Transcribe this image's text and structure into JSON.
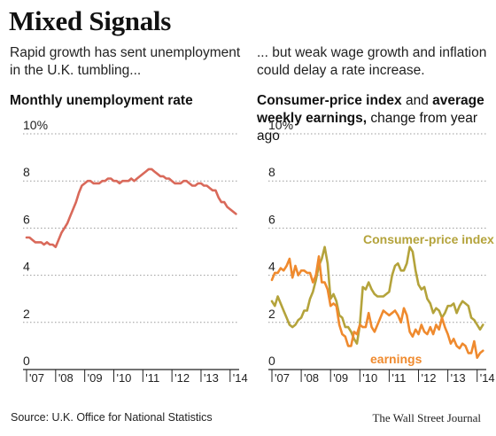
{
  "header": {
    "title": "Mixed Signals",
    "left_intro": "Rapid growth has sent unemployment in the U.K. tumbling...",
    "right_intro": "... but weak wage growth and inflation could delay a rate increase."
  },
  "footer": {
    "source": "Source: U.K. Office for National Statistics",
    "credit": "The Wall Street Journal"
  },
  "chart_data": [
    {
      "type": "line",
      "title": "Monthly unemployment rate",
      "ylim": [
        0,
        10
      ],
      "yticks": [
        "10%",
        "8",
        "6",
        "4",
        "2",
        "0"
      ],
      "xticks": [
        "'07",
        "'08",
        "'09",
        "'10",
        "'11",
        "'12",
        "'13",
        "'14"
      ],
      "colors": {
        "unemployment": "#d9695a"
      },
      "series": [
        {
          "x": [
            2007.0,
            2007.1,
            2007.2,
            2007.3,
            2007.4,
            2007.5,
            2007.6,
            2007.7,
            2007.8,
            2007.9,
            2008.0,
            2008.1,
            2008.2,
            2008.3,
            2008.4,
            2008.5,
            2008.6,
            2008.7,
            2008.8,
            2008.9,
            2009.0,
            2009.1,
            2009.2,
            2009.3,
            2009.4,
            2009.5,
            2009.6,
            2009.7,
            2009.8,
            2009.9,
            2010.0,
            2010.1,
            2010.2,
            2010.3,
            2010.4,
            2010.5,
            2010.6,
            2010.7,
            2010.8,
            2010.9,
            2011.0,
            2011.1,
            2011.2,
            2011.3,
            2011.4,
            2011.5,
            2011.6,
            2011.7,
            2011.8,
            2011.9,
            2012.0,
            2012.1,
            2012.2,
            2012.3,
            2012.4,
            2012.5,
            2012.6,
            2012.7,
            2012.8,
            2012.9,
            2013.0,
            2013.1,
            2013.2,
            2013.3,
            2013.4,
            2013.5,
            2013.6,
            2013.7,
            2013.8,
            2013.9,
            2014.0,
            2014.1,
            2014.2
          ],
          "values": [
            5.6,
            5.6,
            5.5,
            5.4,
            5.4,
            5.4,
            5.3,
            5.4,
            5.3,
            5.3,
            5.2,
            5.5,
            5.8,
            6.0,
            6.2,
            6.5,
            6.8,
            7.1,
            7.5,
            7.8,
            7.9,
            8.0,
            8.0,
            7.9,
            7.9,
            7.9,
            8.0,
            8.0,
            8.1,
            8.1,
            8.0,
            8.0,
            7.9,
            8.0,
            8.0,
            8.0,
            8.1,
            8.0,
            8.1,
            8.2,
            8.3,
            8.4,
            8.5,
            8.5,
            8.4,
            8.3,
            8.2,
            8.2,
            8.1,
            8.1,
            8.0,
            7.9,
            7.9,
            7.9,
            8.0,
            8.0,
            7.9,
            7.8,
            7.8,
            7.9,
            7.9,
            7.8,
            7.8,
            7.7,
            7.6,
            7.6,
            7.3,
            7.1,
            7.1,
            6.9,
            6.8,
            6.7,
            6.6
          ]
        }
      ]
    },
    {
      "type": "line",
      "title_bold_1": "Consumer-price index",
      "title_plain_1": " and ",
      "title_bold_2": "average weekly earnings,",
      "title_plain_2": " change from year ago",
      "ylim": [
        0,
        10
      ],
      "yticks": [
        "10%",
        "8",
        "6",
        "4",
        "2",
        "0"
      ],
      "xticks": [
        "'07",
        "'08",
        "'09",
        "'10",
        "'11",
        "'12",
        "'13",
        "'14"
      ],
      "series": [
        {
          "name": "Consumer-price index",
          "color": "#b4a33b",
          "x": [
            2007.0,
            2007.1,
            2007.2,
            2007.3,
            2007.4,
            2007.5,
            2007.6,
            2007.7,
            2007.8,
            2007.9,
            2008.0,
            2008.1,
            2008.2,
            2008.3,
            2008.4,
            2008.5,
            2008.6,
            2008.7,
            2008.8,
            2008.9,
            2009.0,
            2009.1,
            2009.2,
            2009.3,
            2009.4,
            2009.5,
            2009.6,
            2009.7,
            2009.8,
            2009.9,
            2010.0,
            2010.1,
            2010.2,
            2010.3,
            2010.4,
            2010.5,
            2010.6,
            2010.7,
            2010.8,
            2010.9,
            2011.0,
            2011.1,
            2011.2,
            2011.3,
            2011.4,
            2011.5,
            2011.6,
            2011.7,
            2011.8,
            2011.9,
            2012.0,
            2012.1,
            2012.2,
            2012.3,
            2012.4,
            2012.5,
            2012.6,
            2012.7,
            2012.8,
            2012.9,
            2013.0,
            2013.1,
            2013.2,
            2013.3,
            2013.4,
            2013.5,
            2013.6,
            2013.7,
            2013.8,
            2013.9,
            2014.0,
            2014.1,
            2014.2
          ],
          "values": [
            2.9,
            2.7,
            3.1,
            2.8,
            2.5,
            2.2,
            1.9,
            1.8,
            1.9,
            2.1,
            2.2,
            2.5,
            2.5,
            3.0,
            3.3,
            3.8,
            4.4,
            4.7,
            5.2,
            4.5,
            3.0,
            3.2,
            2.9,
            2.3,
            2.2,
            1.8,
            1.8,
            1.6,
            1.3,
            1.1,
            1.9,
            3.5,
            3.4,
            3.7,
            3.4,
            3.2,
            3.1,
            3.1,
            3.1,
            3.2,
            3.3,
            4.0,
            4.4,
            4.5,
            4.2,
            4.2,
            4.5,
            5.2,
            5.0,
            4.2,
            3.6,
            3.4,
            3.5,
            3.0,
            2.8,
            2.4,
            2.6,
            2.5,
            2.2,
            2.4,
            2.7,
            2.7,
            2.8,
            2.4,
            2.7,
            2.9,
            2.8,
            2.7,
            2.2,
            2.1,
            1.9,
            1.7,
            1.9
          ]
        },
        {
          "name": "earnings",
          "color": "#ef8a2e",
          "x": [
            2007.0,
            2007.1,
            2007.2,
            2007.3,
            2007.4,
            2007.5,
            2007.6,
            2007.7,
            2007.8,
            2007.9,
            2008.0,
            2008.1,
            2008.2,
            2008.3,
            2008.4,
            2008.5,
            2008.6,
            2008.7,
            2008.8,
            2008.9,
            2009.0,
            2009.1,
            2009.2,
            2009.3,
            2009.4,
            2009.5,
            2009.6,
            2009.7,
            2009.8,
            2009.9,
            2010.0,
            2010.1,
            2010.2,
            2010.3,
            2010.4,
            2010.5,
            2010.6,
            2010.7,
            2010.8,
            2010.9,
            2011.0,
            2011.1,
            2011.2,
            2011.3,
            2011.4,
            2011.5,
            2011.6,
            2011.7,
            2011.8,
            2011.9,
            2012.0,
            2012.1,
            2012.2,
            2012.3,
            2012.4,
            2012.5,
            2012.6,
            2012.7,
            2012.8,
            2012.9,
            2013.0,
            2013.1,
            2013.2,
            2013.3,
            2013.4,
            2013.5,
            2013.6,
            2013.7,
            2013.8,
            2013.9,
            2014.0,
            2014.1,
            2014.2
          ],
          "values": [
            3.8,
            4.1,
            4.1,
            4.3,
            4.2,
            4.4,
            4.7,
            3.9,
            4.4,
            4.0,
            4.2,
            4.2,
            4.1,
            4.1,
            3.7,
            4.0,
            4.8,
            3.7,
            3.7,
            3.4,
            2.7,
            2.8,
            2.7,
            1.9,
            1.5,
            1.4,
            1.0,
            1.0,
            1.6,
            1.5,
            1.9,
            1.8,
            1.8,
            2.4,
            1.8,
            1.6,
            1.9,
            2.2,
            2.5,
            2.4,
            2.3,
            2.4,
            2.5,
            2.3,
            2.0,
            2.6,
            2.3,
            1.6,
            1.4,
            1.7,
            1.5,
            1.9,
            1.6,
            1.5,
            1.8,
            1.5,
            1.9,
            1.7,
            2.2,
            1.8,
            1.5,
            1.1,
            1.3,
            1.0,
            0.9,
            1.1,
            1.0,
            0.7,
            0.7,
            1.2,
            0.5,
            0.7,
            0.8
          ]
        }
      ]
    }
  ]
}
